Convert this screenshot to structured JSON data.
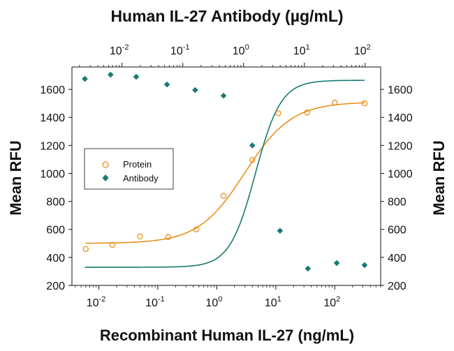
{
  "chart_data": {
    "type": "scatter",
    "title": "Human IL-27 Antibody (µg/mL)",
    "xlabel": "Recombinant Human IL-27 (ng/mL)",
    "ylabel": "Mean RFU",
    "y2label": "Mean RFU",
    "xscale": "log",
    "xlim": [
      0.0035,
      600
    ],
    "ylim": [
      200,
      1760
    ],
    "top_axis": {
      "label": "Human IL-27 Antibody (µg/mL)",
      "scale": "log",
      "xlim": [
        0.0015,
        180
      ],
      "ticks": [
        {
          "value": 0.01,
          "base": "10",
          "exp": "-2"
        },
        {
          "value": 0.1,
          "base": "10",
          "exp": "-1"
        },
        {
          "value": 1,
          "base": "10",
          "exp": "0"
        },
        {
          "value": 10,
          "base": "10",
          "exp": "1"
        },
        {
          "value": 100,
          "base": "10",
          "exp": "2"
        }
      ]
    },
    "x_ticks": [
      {
        "value": 0.01,
        "base": "10",
        "exp": "-2"
      },
      {
        "value": 0.1,
        "base": "10",
        "exp": "-1"
      },
      {
        "value": 1,
        "base": "10",
        "exp": "0"
      },
      {
        "value": 10,
        "base": "10",
        "exp": "1"
      },
      {
        "value": 100,
        "base": "10",
        "exp": "2"
      }
    ],
    "y_ticks": [
      200,
      400,
      600,
      800,
      1000,
      1200,
      1400,
      1600
    ],
    "y_tick_labels": [
      "200",
      "400",
      "600",
      "800",
      "1000",
      "1200",
      "1400",
      "1600"
    ],
    "legend": {
      "position": "left-center",
      "entries": [
        "Protein",
        "Antibody"
      ]
    },
    "series": [
      {
        "name": "Protein",
        "color": "#e8901c",
        "marker": "open-circle",
        "x": [
          0.006,
          0.017,
          0.05,
          0.15,
          0.45,
          1.3,
          4.0,
          11.0,
          34.0,
          100.0,
          320.0
        ],
        "y": [
          460,
          490,
          550,
          545,
          600,
          840,
          1095,
          1430,
          1435,
          1505,
          1500
        ],
        "fit": {
          "bottom": 500,
          "top": 1510,
          "ec50": 3.0,
          "hill": 1.1
        }
      },
      {
        "name": "Antibody",
        "color": "#167a72",
        "marker": "filled-diamond",
        "x": [
          0.0058,
          0.0158,
          0.043,
          0.143,
          0.43,
          1.3,
          4.0,
          11.8,
          35.0,
          108.0,
          320.0
        ],
        "y": [
          1675,
          1705,
          1690,
          1635,
          1595,
          1555,
          1200,
          590,
          320,
          360,
          345
        ],
        "fit": {
          "bottom": 330,
          "top": 1665,
          "ec50": 4.5,
          "hill": 2.0
        }
      }
    ]
  }
}
